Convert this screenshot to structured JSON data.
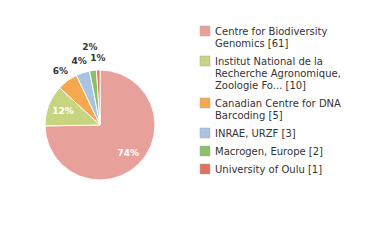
{
  "chart_data": {
    "type": "pie",
    "categories": [
      "Centre for Biodiversity\nGenomics [61]",
      "Institut National de la\nRecherche Agronomique,\nZoologie Fo... [10]",
      "Canadian Centre for DNA\nBarcoding [5]",
      "INRAE, URZF [3]",
      "Macrogen, Europe [2]",
      "University of Oulu [1]"
    ],
    "values": [
      74,
      12,
      6,
      4,
      2,
      1
    ],
    "value_labels": [
      "74%",
      "12%",
      "6%",
      "4%",
      "2%",
      "1%"
    ],
    "colors": [
      "#e8a09a",
      "#c8d580",
      "#f5a84e",
      "#a8c4e0",
      "#8cbf6a",
      "#e07060"
    ],
    "data_labels": true,
    "legend": "right"
  }
}
